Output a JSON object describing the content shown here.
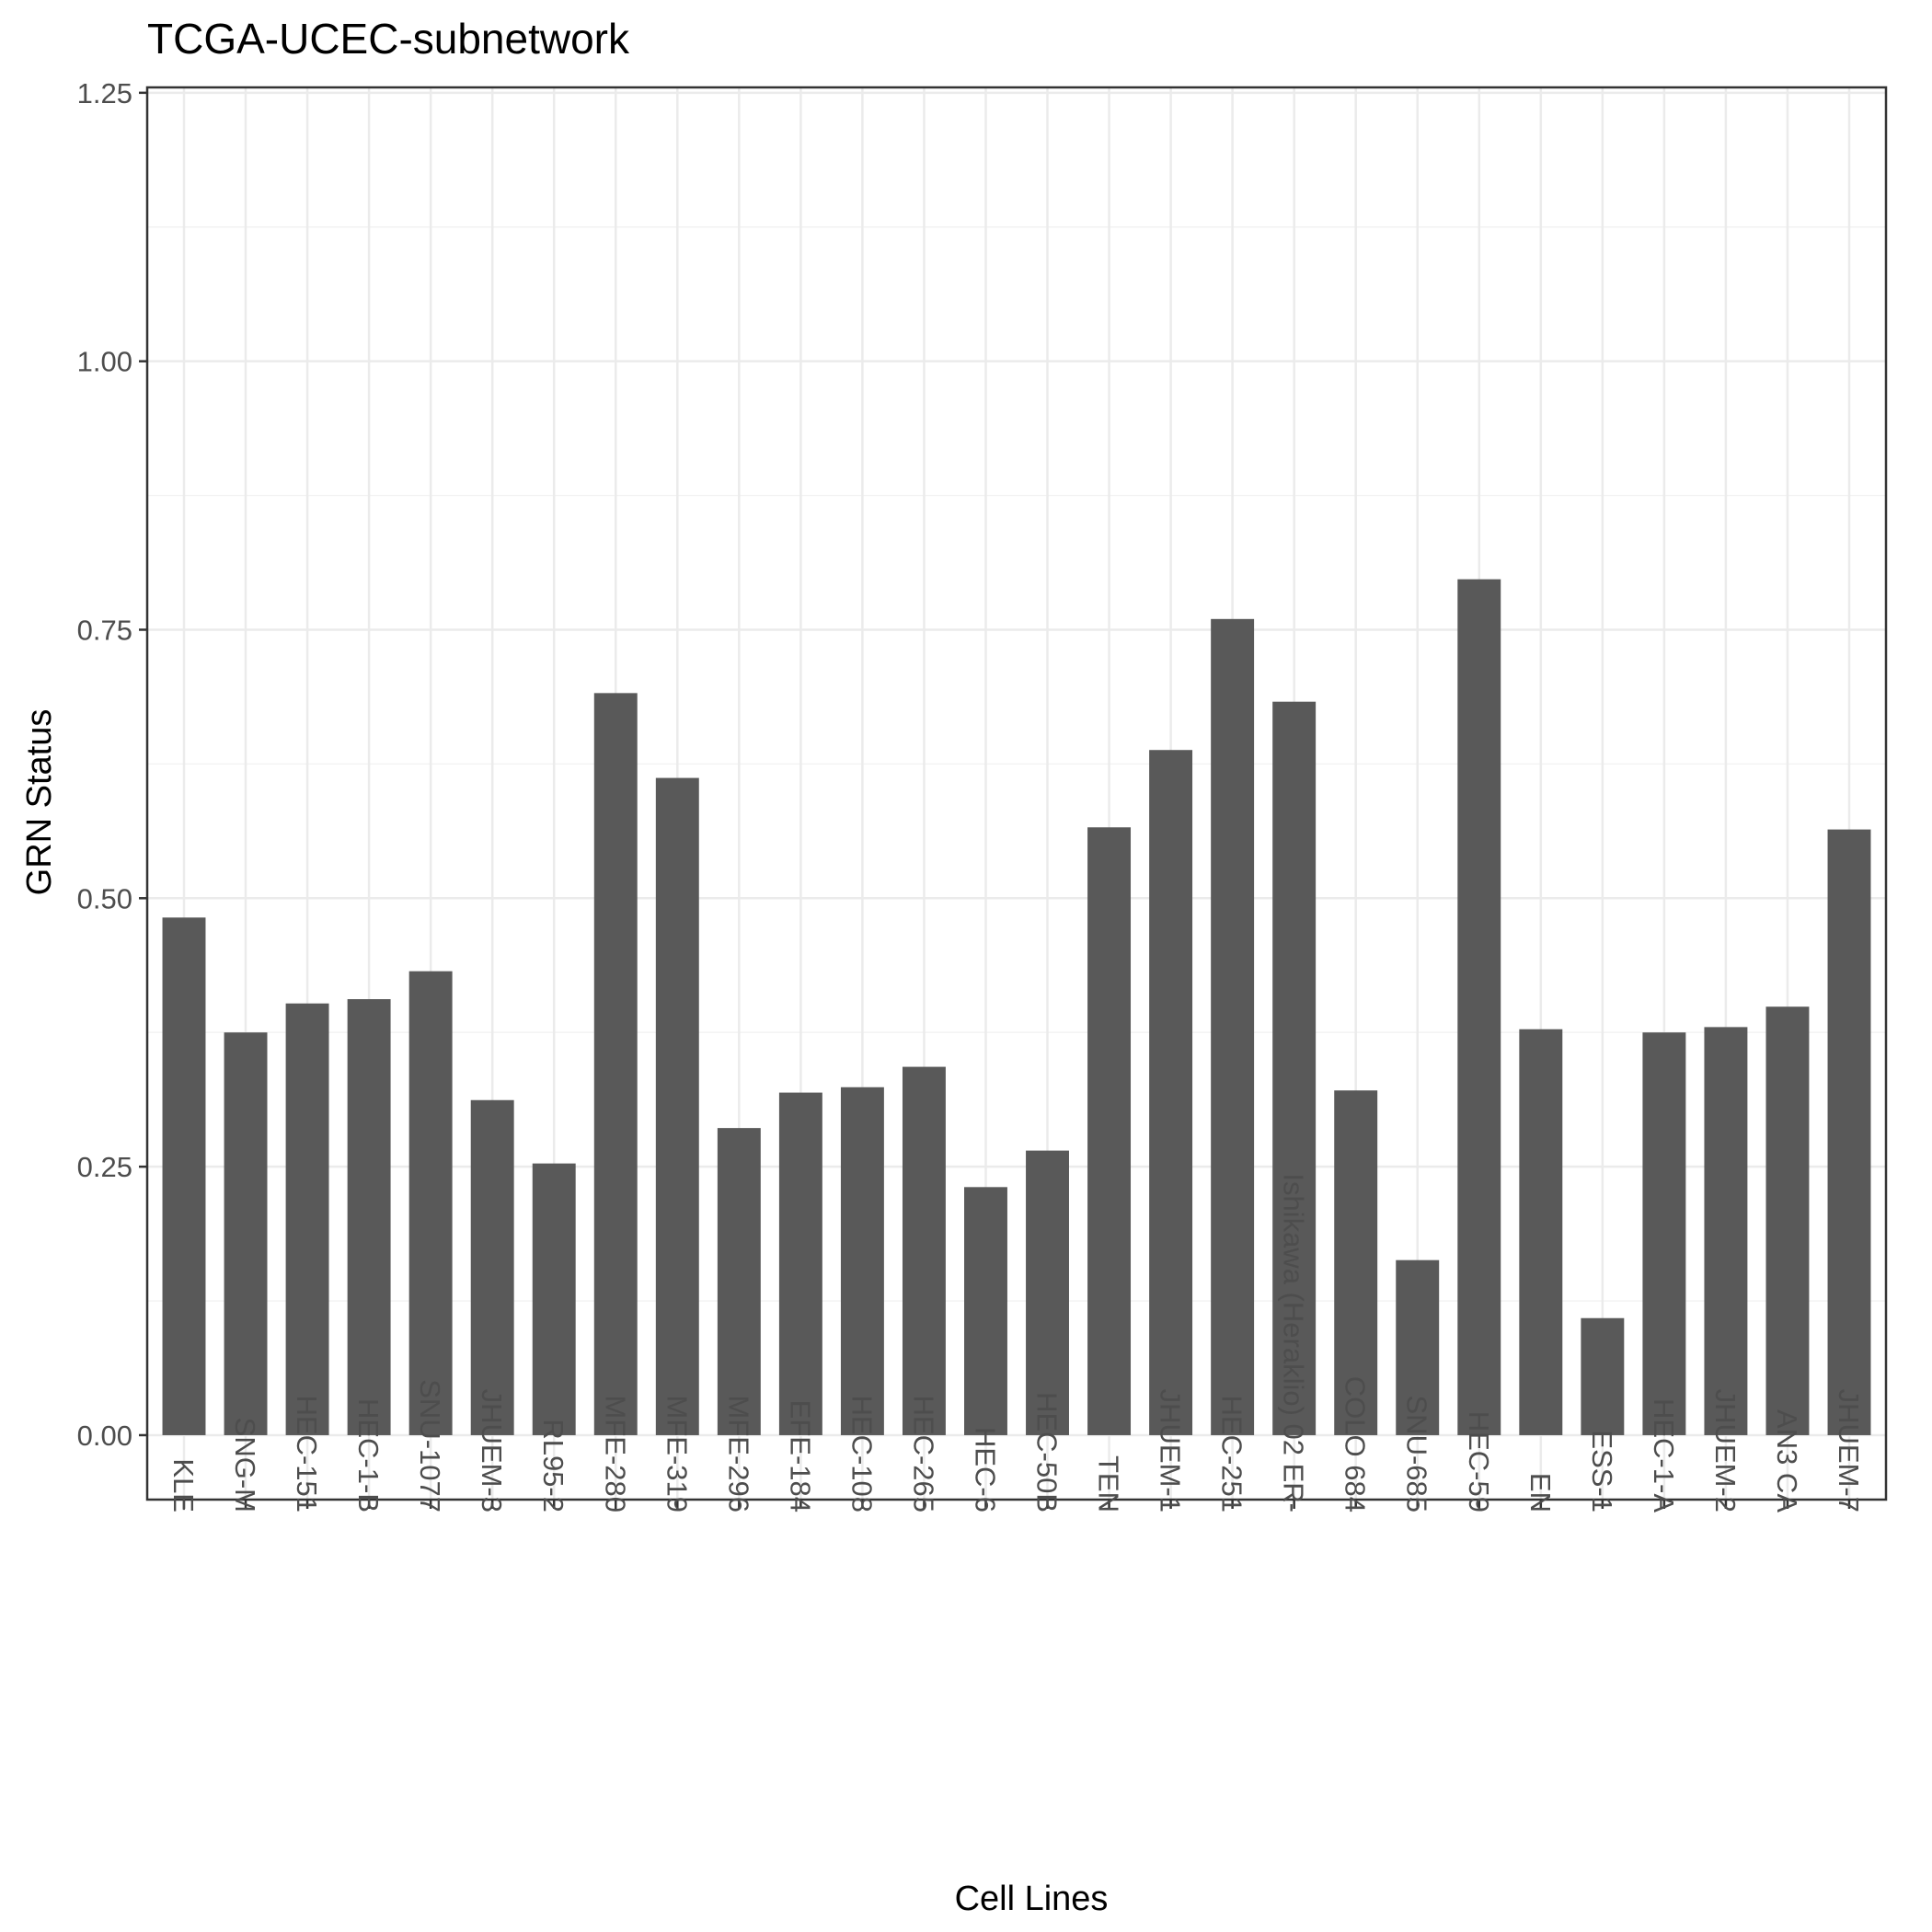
{
  "chart_data": {
    "type": "bar",
    "title": "TCGA-UCEC-subnetwork",
    "xlabel": "Cell Lines",
    "ylabel": "GRN Status",
    "ylim": [
      -0.06,
      1.255
    ],
    "yticks": [
      0.0,
      0.25,
      0.5,
      0.75,
      1.0,
      1.25
    ],
    "ytick_labels": [
      "0.00",
      "0.25",
      "0.50",
      "0.75",
      "1.00",
      "1.25"
    ],
    "grid": true,
    "bar_color": "#595959",
    "categories": [
      "KLE",
      "SNG-M",
      "HEC-151",
      "HEC-1-B",
      "SNU-1077",
      "JHUEM-3",
      "RL95-2",
      "MFE-280",
      "MFE-319",
      "MFE-296",
      "EFE-184",
      "HEC-108",
      "HEC-265",
      "HEC-6",
      "HEC-50B",
      "TEN",
      "JHUEM-1",
      "HEC-251",
      "Ishikawa (Heraklio) 02 ER-",
      "COLO 684",
      "SNU-685",
      "HEC-59",
      "EN",
      "ESS-1",
      "HEC-1-A",
      "JHUEM-2",
      "AN3 CA",
      "JHUEM-7"
    ],
    "values": [
      0.482,
      0.375,
      0.402,
      0.406,
      0.432,
      0.312,
      0.253,
      0.691,
      0.612,
      0.286,
      0.319,
      0.324,
      0.343,
      0.231,
      0.265,
      0.566,
      0.638,
      0.76,
      0.683,
      0.321,
      0.163,
      0.797,
      0.378,
      0.109,
      0.375,
      0.38,
      0.399,
      0.564
    ]
  }
}
